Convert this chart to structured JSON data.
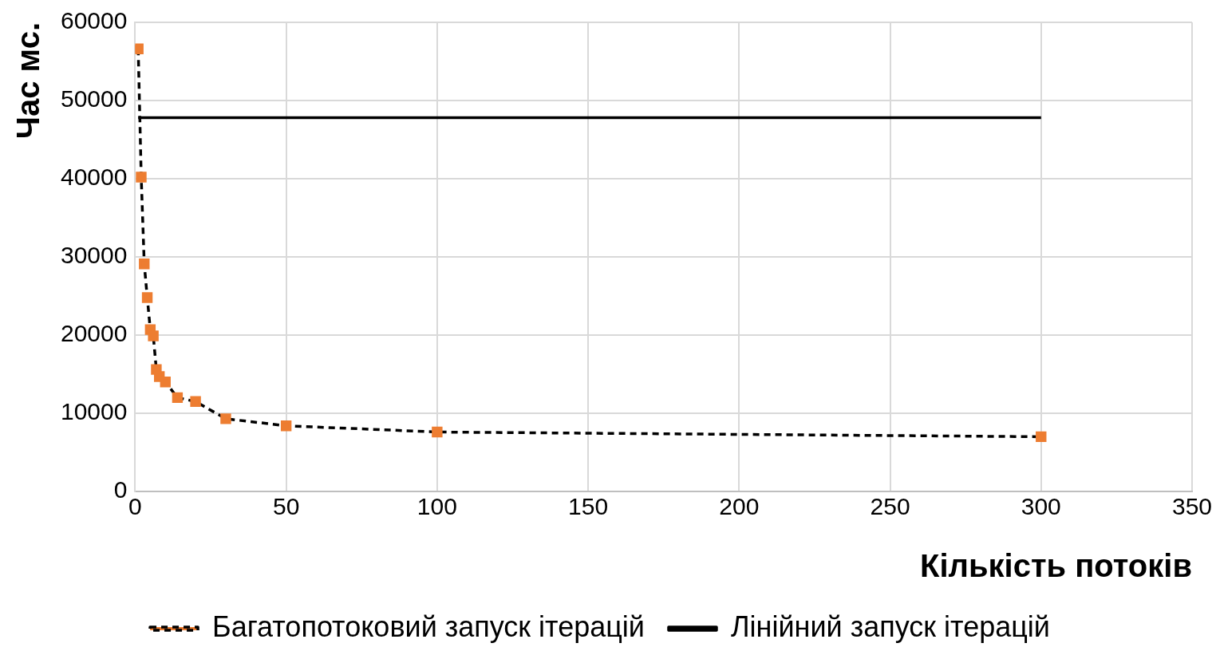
{
  "chart_data": {
    "type": "line",
    "xlabel": "Кількість потоків",
    "ylabel": "Час мс.",
    "xlim": [
      0,
      350
    ],
    "xticks": [
      0,
      50,
      100,
      150,
      200,
      250,
      300,
      350
    ],
    "ylim": [
      0,
      60000
    ],
    "yticks": [
      0,
      10000,
      20000,
      30000,
      40000,
      50000,
      60000
    ],
    "grid": true,
    "legend": "bottom",
    "series": [
      {
        "name": "Багатопотоковий запуск ітерацій",
        "color": "#ed7d31",
        "marker": "square",
        "line_style": "dashed",
        "x": [
          1,
          2,
          3,
          4,
          5,
          6,
          7,
          8,
          10,
          14,
          20,
          30,
          50,
          100,
          300
        ],
        "values": [
          56600,
          40200,
          29100,
          24800,
          20700,
          19900,
          15600,
          14700,
          14000,
          12000,
          11500,
          9300,
          8400,
          7600,
          7000
        ]
      },
      {
        "name": "Лінійний запуск ітерацій",
        "color": "#000000",
        "marker": "none",
        "line_style": "solid",
        "x": [
          1,
          300
        ],
        "values": [
          47800,
          47800
        ]
      }
    ]
  }
}
